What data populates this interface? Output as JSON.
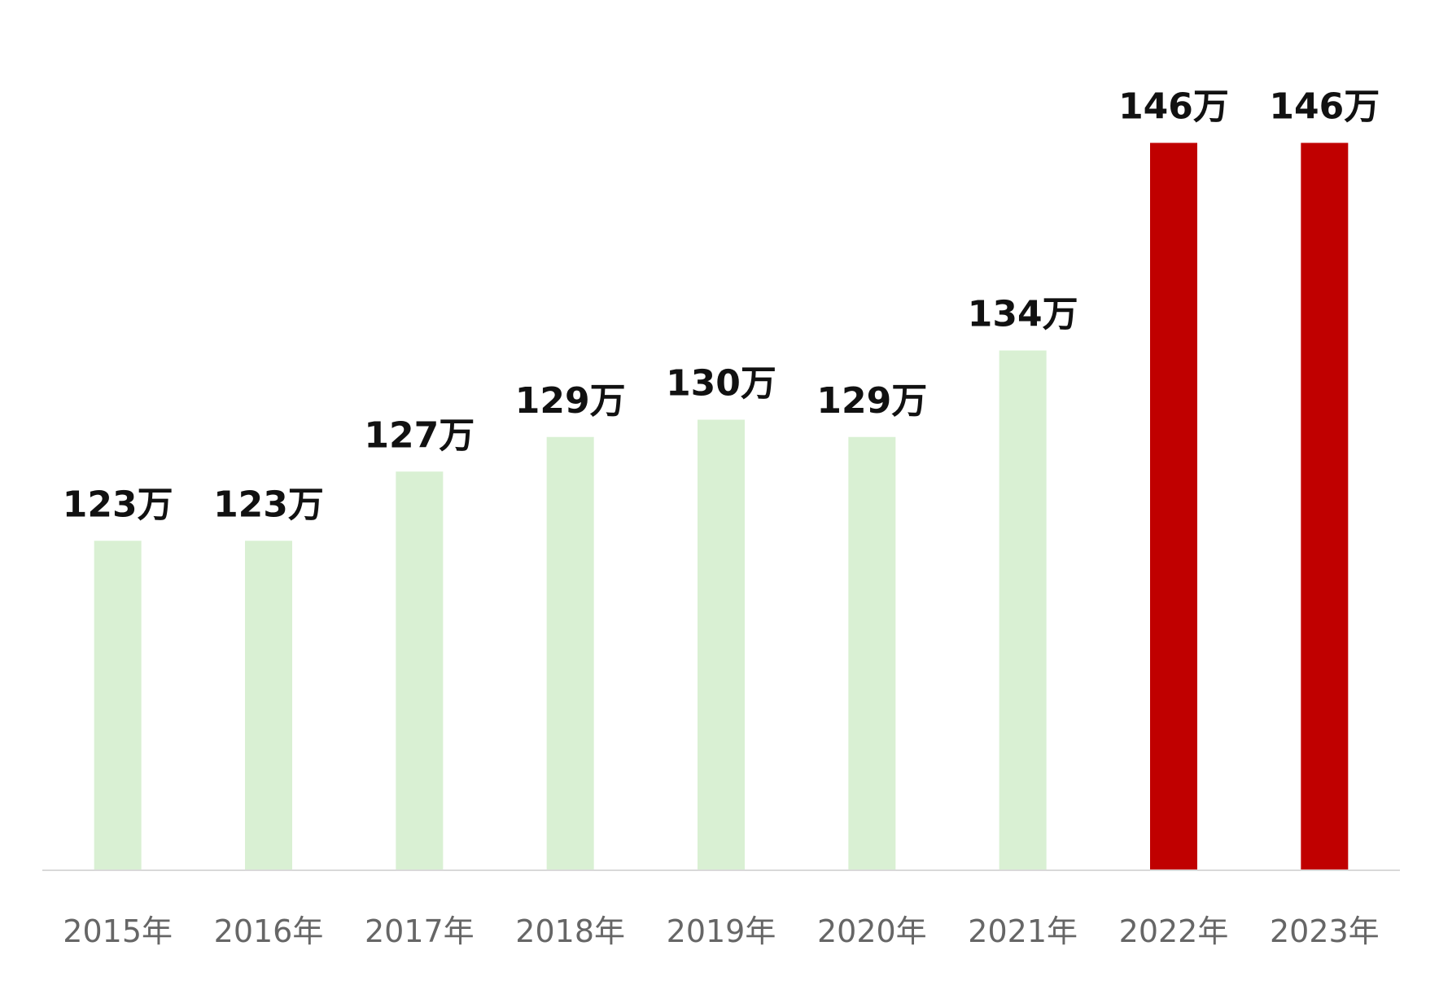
{
  "chart_data": {
    "type": "bar",
    "categories": [
      "2015年",
      "2016年",
      "2017年",
      "2018年",
      "2019年",
      "2020年",
      "2021年",
      "2022年",
      "2023年"
    ],
    "values": [
      123,
      123,
      127,
      129,
      130,
      129,
      134,
      146,
      146
    ],
    "data_labels": [
      "123万",
      "123万",
      "127万",
      "129万",
      "130万",
      "129万",
      "134万",
      "146万",
      "146万"
    ],
    "title": "",
    "xlabel": "",
    "ylabel": "",
    "ylim": [
      104,
      148
    ],
    "grid": false,
    "legend": "none",
    "colors": {
      "default_bar": "#d9f0d3",
      "highlight_bar": "#c00000",
      "axis_line": "#d9d9d9"
    },
    "highlight_categories": [
      "2022年",
      "2023年"
    ]
  }
}
